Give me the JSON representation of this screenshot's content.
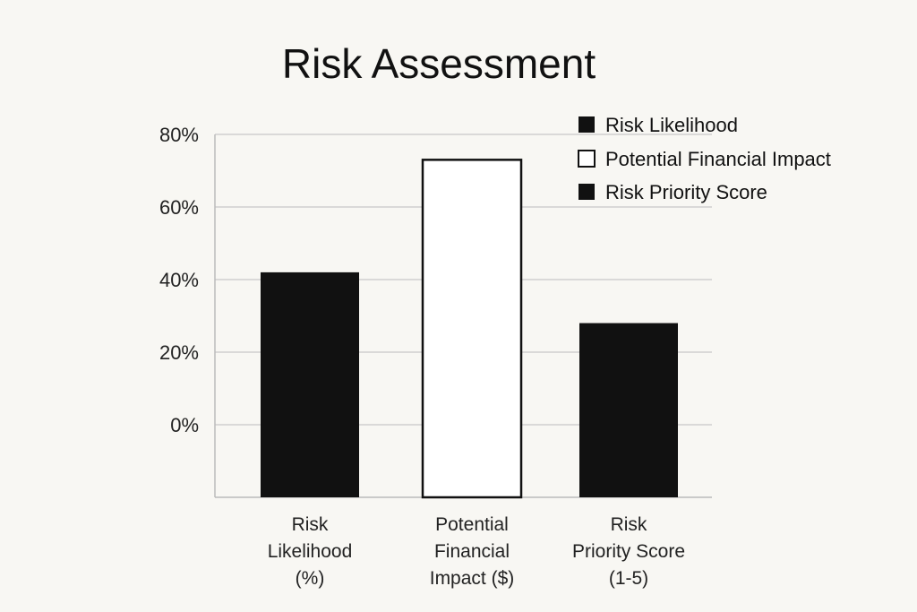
{
  "chart_data": {
    "type": "bar",
    "title": "Risk Assessment",
    "categories": [
      [
        "Risk",
        "Likelihood",
        "(%)"
      ],
      [
        "Potential",
        "Financial",
        "Impact ($)"
      ],
      [
        "Risk",
        "Priority Score",
        "(1-5)"
      ]
    ],
    "series": [
      {
        "name": "Risk Likelihood",
        "values": [
          42,
          null,
          null
        ],
        "fill": "#111111"
      },
      {
        "name": "Potential Financial Impact",
        "values": [
          null,
          73,
          null
        ],
        "fill": "#ffffff"
      },
      {
        "name": "Risk Priority Score",
        "values": [
          null,
          null,
          28
        ],
        "fill": "#111111"
      }
    ],
    "bar_baseline": -20,
    "y_ticks": [
      {
        "value": 80,
        "label": "80%"
      },
      {
        "value": 60,
        "label": "60%"
      },
      {
        "value": 40,
        "label": "40%"
      },
      {
        "value": 20,
        "label": "20%"
      },
      {
        "value": 0,
        "label": "0%"
      }
    ],
    "ylim": [
      -20,
      80
    ],
    "xlabel": "",
    "ylabel": "",
    "grid": true,
    "legend_position": "top-right",
    "colors": {
      "bar_dark": "#111111",
      "bar_light": "#ffffff",
      "grid": "#cfcfcf",
      "axis": "#bbbbbb"
    }
  }
}
